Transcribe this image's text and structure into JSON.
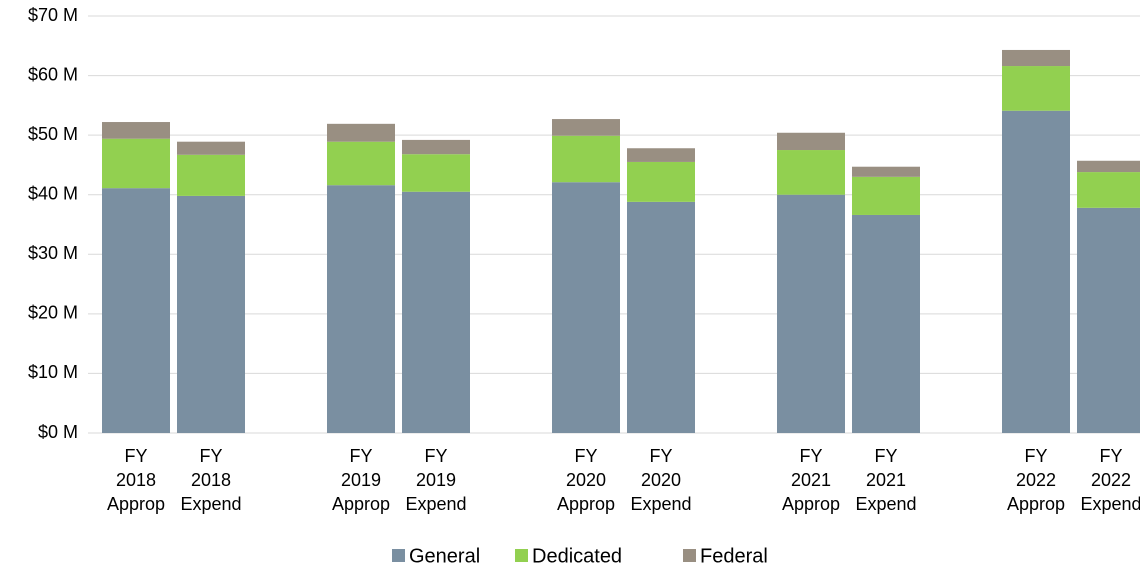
{
  "chart_data": {
    "type": "stacked_bar",
    "categories": [
      [
        "FY",
        "2018",
        "Approp"
      ],
      [
        "FY",
        "2018",
        "Expend"
      ],
      [
        "FY",
        "2019",
        "Approp"
      ],
      [
        "FY",
        "2019",
        "Expend"
      ],
      [
        "FY",
        "2020",
        "Approp"
      ],
      [
        "FY",
        "2020",
        "Expend"
      ],
      [
        "FY",
        "2021",
        "Approp"
      ],
      [
        "FY",
        "2021",
        "Expend"
      ],
      [
        "FY",
        "2022",
        "Approp"
      ],
      [
        "FY",
        "2022",
        "Expend"
      ]
    ],
    "series": [
      {
        "name": "General",
        "color": "#7a8fa1",
        "values": [
          41.1,
          39.8,
          41.6,
          40.5,
          42.1,
          38.8,
          40.0,
          36.6,
          54.1,
          37.8
        ]
      },
      {
        "name": "Dedicated",
        "color": "#92d050",
        "values": [
          8.3,
          6.9,
          7.3,
          6.3,
          7.8,
          6.7,
          7.5,
          6.4,
          7.5,
          6.0
        ]
      },
      {
        "name": "Federal",
        "color": "#998f82",
        "values": [
          2.8,
          2.2,
          3.0,
          2.4,
          2.8,
          2.3,
          2.9,
          1.7,
          2.7,
          1.9
        ]
      }
    ],
    "ylim": [
      0,
      70
    ],
    "yticks": [
      {
        "value": 0,
        "label": "$0 M"
      },
      {
        "value": 10,
        "label": "$10 M"
      },
      {
        "value": 20,
        "label": "$20 M"
      },
      {
        "value": 30,
        "label": "$30 M"
      },
      {
        "value": 40,
        "label": "$40 M"
      },
      {
        "value": 50,
        "label": "$50 M"
      },
      {
        "value": 60,
        "label": "$60 M"
      },
      {
        "value": 70,
        "label": "$70 M"
      }
    ],
    "grid": true,
    "legend": "bottom"
  }
}
